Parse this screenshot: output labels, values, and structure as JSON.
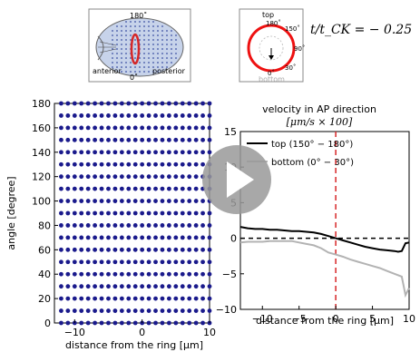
{
  "schematic": {
    "label_180": "180˚",
    "label_0": "0˚",
    "label_anterior": "anterior",
    "label_posterior": "posterior"
  },
  "cross_section": {
    "top": "top",
    "bottom": "bottom",
    "deg_180": "180˚",
    "deg_150": "150˚",
    "deg_90": "90˚",
    "deg_30": "30˚",
    "deg_0": "0˚"
  },
  "time_label": "t/t_CK = − 0.25",
  "play_button": {
    "icon": "play-icon"
  },
  "chart_data": [
    {
      "type": "scatter",
      "xlabel": "distance from the ring [μm]",
      "ylabel": "angle [degree]",
      "xlim": [
        -13,
        10
      ],
      "ylim": [
        0,
        180
      ],
      "xticks": [
        -10,
        0,
        10
      ],
      "yticks": [
        0,
        20,
        40,
        60,
        80,
        100,
        120,
        140,
        160,
        180
      ],
      "grid_x": [
        -12,
        -11,
        -10,
        -9,
        -8,
        -7,
        -6,
        -5,
        -4,
        -3,
        -2,
        -1,
        0,
        1,
        2,
        3,
        4,
        5,
        6,
        7,
        8,
        9,
        10
      ],
      "grid_y": [
        0,
        10,
        20,
        30,
        40,
        50,
        60,
        70,
        80,
        90,
        100,
        110,
        120,
        130,
        140,
        150,
        160,
        170,
        180
      ],
      "point_color": "#1a1a8c"
    },
    {
      "type": "line",
      "title": "velocity in AP direction",
      "subtitle": "[μm/s × 100]",
      "xlabel": "distance from the ring [μm]",
      "xlim": [
        -13,
        10
      ],
      "ylim": [
        -10,
        15
      ],
      "xticks": [
        -10,
        -5,
        0,
        5,
        10
      ],
      "yticks": [
        -10,
        -5,
        0,
        5,
        10,
        15
      ],
      "series": [
        {
          "name": "top (150° − 180°)",
          "color": "#000000",
          "x": [
            -13,
            -12,
            -11,
            -10,
            -9,
            -8,
            -7,
            -6,
            -5,
            -4,
            -3,
            -2,
            -1,
            0,
            1,
            2,
            3,
            4,
            5,
            6,
            7,
            8,
            8.5,
            9,
            9.5,
            10
          ],
          "y": [
            1.6,
            1.4,
            1.3,
            1.3,
            1.2,
            1.2,
            1.1,
            1.0,
            1.0,
            0.9,
            0.8,
            0.6,
            0.3,
            0.0,
            -0.3,
            -0.6,
            -0.9,
            -1.2,
            -1.4,
            -1.6,
            -1.7,
            -1.8,
            -1.9,
            -1.8,
            -0.7,
            -0.6
          ]
        },
        {
          "name": "bottom (0° − 30°)",
          "color": "#b3b3b3",
          "x": [
            -13,
            -12,
            -11,
            -10,
            -9,
            -8,
            -7,
            -6,
            -5,
            -4,
            -3,
            -2,
            -1,
            0,
            1,
            2,
            3,
            4,
            5,
            6,
            7,
            8,
            9,
            9.5,
            10
          ],
          "y": [
            -0.6,
            -0.5,
            -0.5,
            -0.5,
            -0.4,
            -0.4,
            -0.4,
            -0.4,
            -0.6,
            -0.8,
            -1.0,
            -1.4,
            -2.0,
            -2.3,
            -2.6,
            -3.0,
            -3.3,
            -3.6,
            -3.9,
            -4.2,
            -4.6,
            -5.0,
            -5.4,
            -8.0,
            -7.0
          ]
        }
      ],
      "hline": 0,
      "vline": 0,
      "vline_color": "#d62728"
    }
  ]
}
